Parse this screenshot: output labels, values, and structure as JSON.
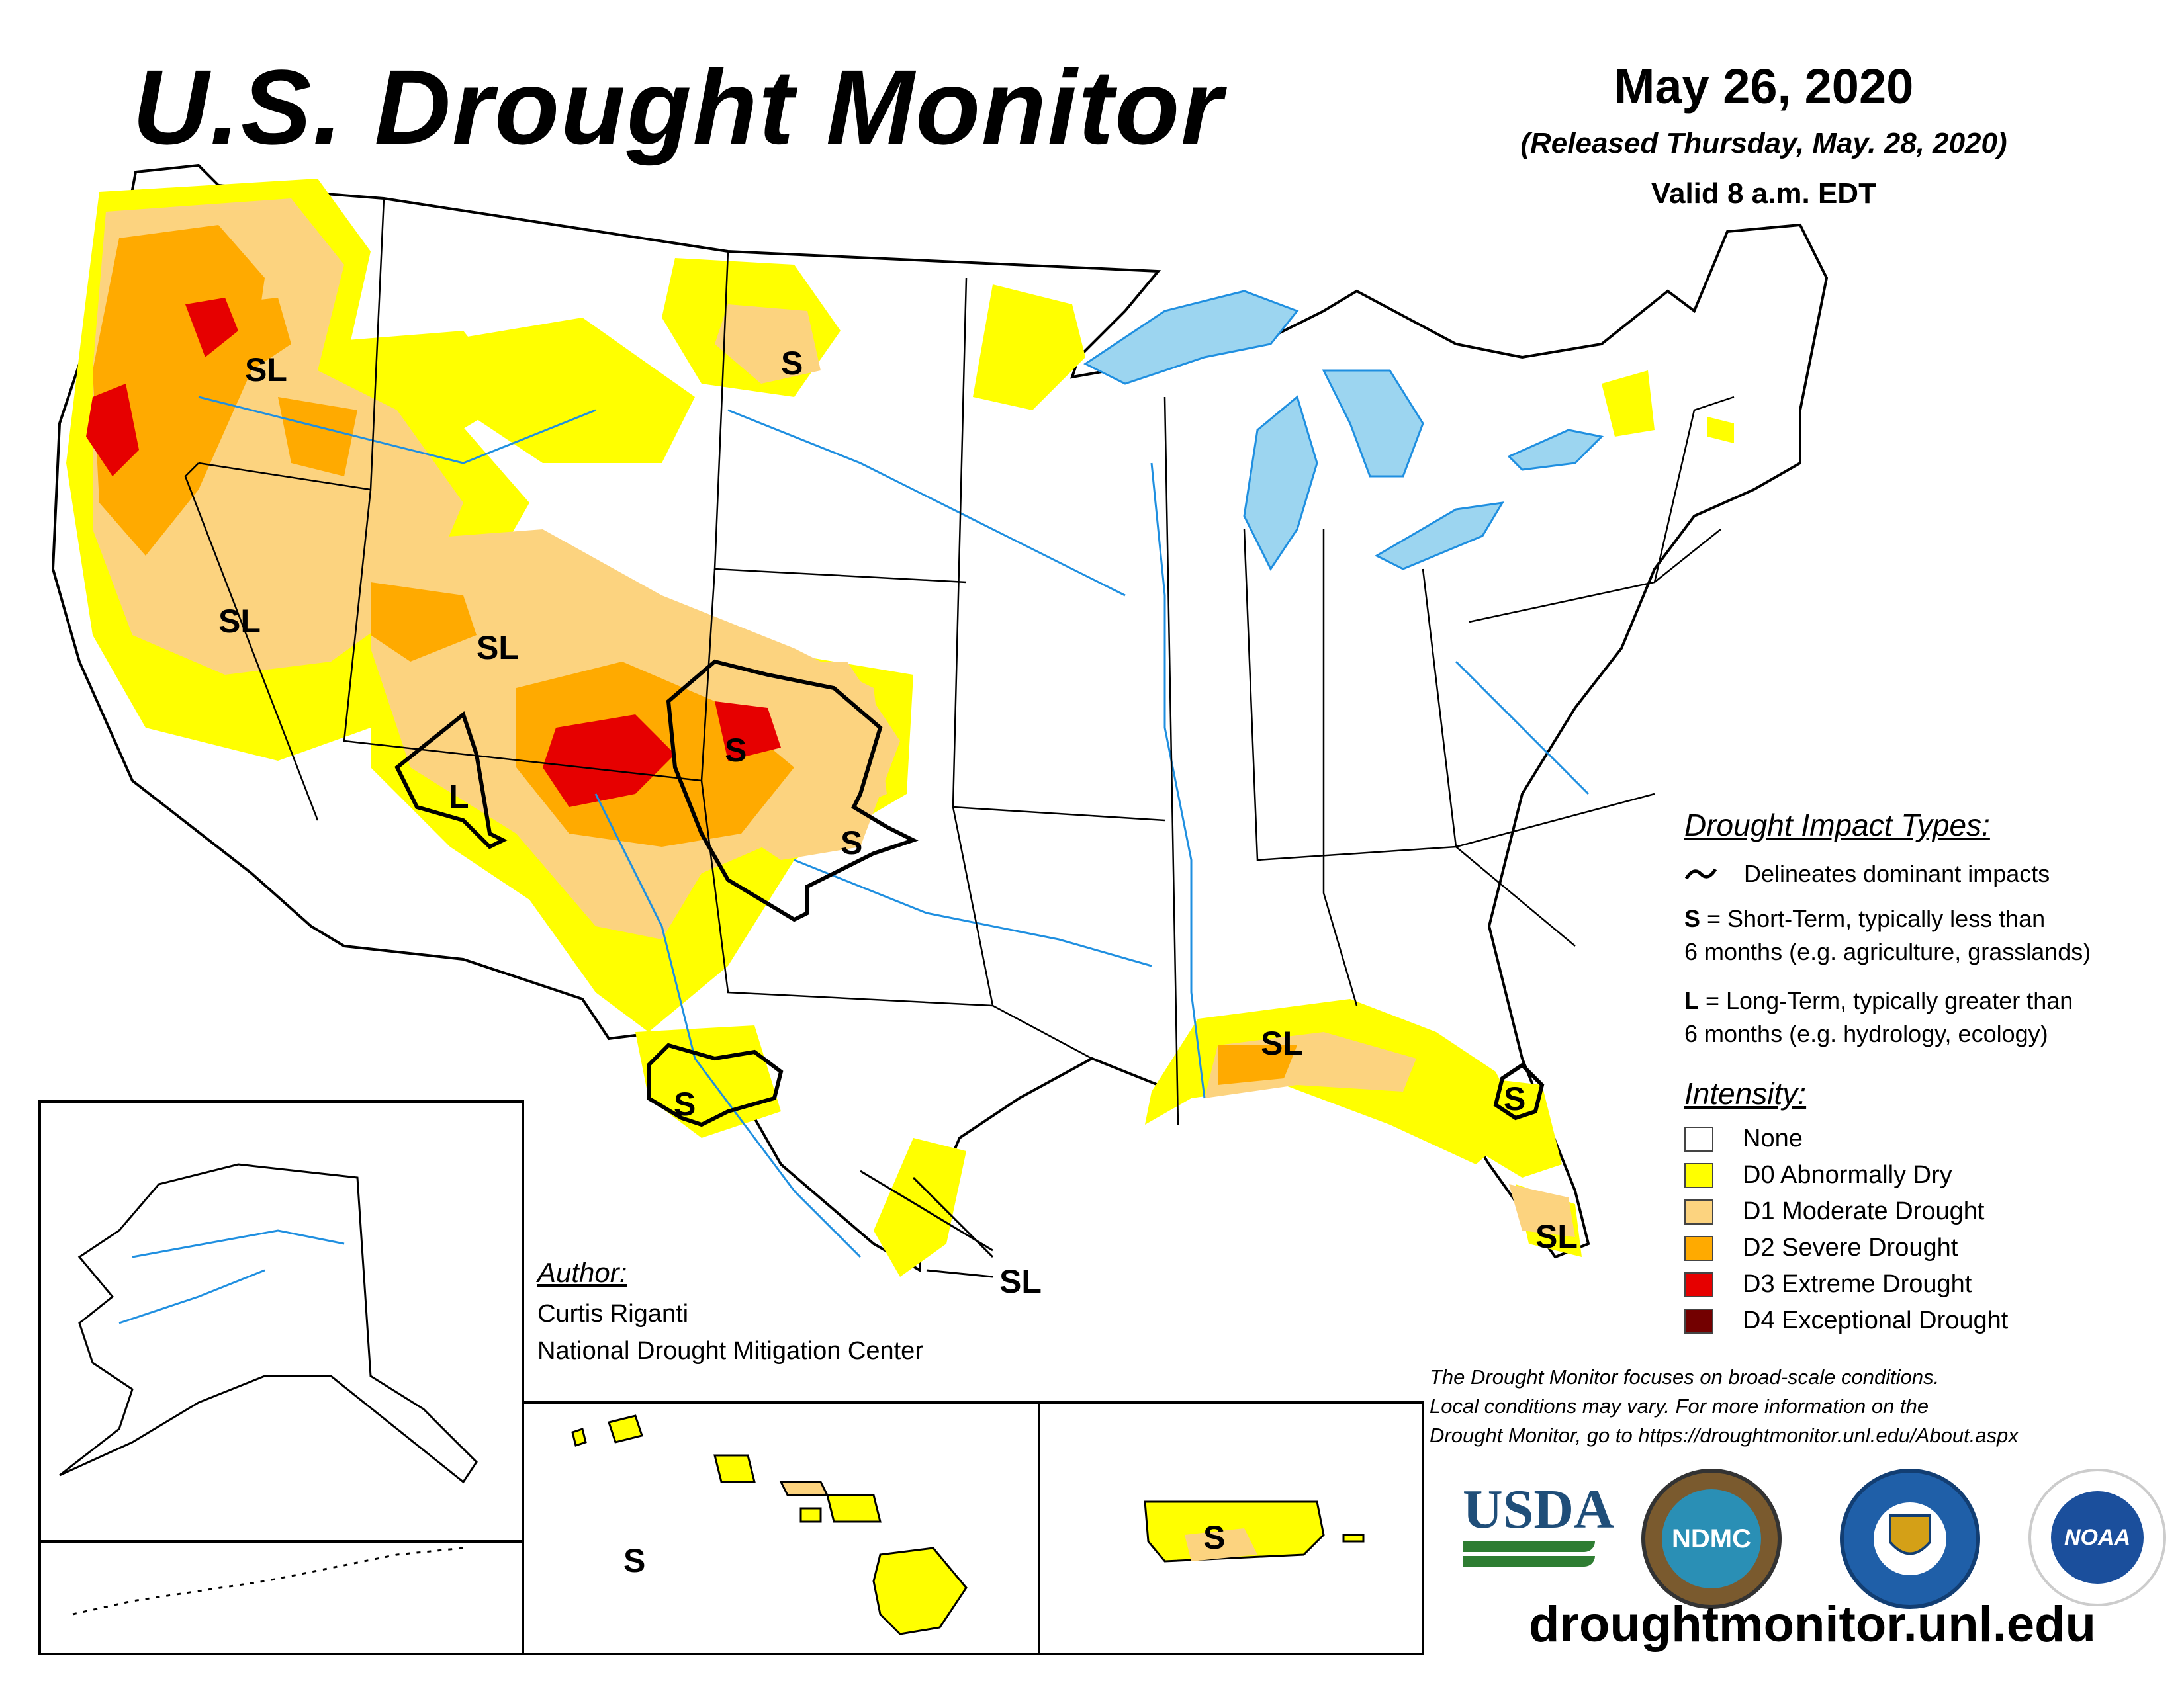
{
  "header": {
    "title": "U.S. Drought Monitor",
    "date": "May 26, 2020",
    "released": "(Released Thursday, May. 28, 2020)",
    "valid": "Valid 8 a.m. EDT"
  },
  "map_labels": {
    "or_sl": "SL",
    "nv_sl": "SL",
    "ut_sl": "SL",
    "az_l": "L",
    "nd_s": "S",
    "co_s": "S",
    "ok_s": "S",
    "tx_s": "S",
    "tx_sl": "SL",
    "la_sl": "SL",
    "fl_s": "S",
    "sfl_sl": "SL",
    "hi_s": "S",
    "pr_s": "S"
  },
  "impact_legend": {
    "title": "Drought Impact Types:",
    "delineates": "Delineates dominant impacts",
    "s_key": "S",
    "s_desc_1": " = Short-Term, typically less than",
    "s_desc_2": "6 months (e.g. agriculture, grasslands)",
    "l_key": "L",
    "l_desc_1": " = Long-Term, typically greater than",
    "l_desc_2": "6 months (e.g. hydrology, ecology)"
  },
  "intensity_legend": {
    "title": "Intensity:",
    "categories": [
      {
        "label": "None",
        "color": "#ffffff"
      },
      {
        "label": "D0 Abnormally Dry",
        "color": "#ffff00"
      },
      {
        "label": "D1 Moderate Drought",
        "color": "#fcd37f"
      },
      {
        "label": "D2 Severe Drought",
        "color": "#ffaa00"
      },
      {
        "label": "D3 Extreme Drought",
        "color": "#e60000"
      },
      {
        "label": "D4 Exceptional Drought",
        "color": "#730000"
      }
    ]
  },
  "author": {
    "title": "Author:",
    "name": "Curtis Riganti",
    "org": "National Drought Mitigation Center"
  },
  "disclaimer": {
    "line1": "The Drought Monitor focuses on broad-scale conditions.",
    "line2": "Local conditions may vary. For more information on the",
    "line3": "Drought Monitor, go to https://droughtmonitor.unl.edu/About.aspx"
  },
  "logos": {
    "usda": "USDA",
    "ndmc": "NDMC",
    "noaa": "NOAA"
  },
  "website": "droughtmonitor.unl.edu",
  "colors": {
    "water": "#9cd5f0",
    "river": "#1f8fe0",
    "d0": "#ffff00",
    "d1": "#fcd37f",
    "d2": "#ffaa00",
    "d3": "#e60000"
  }
}
